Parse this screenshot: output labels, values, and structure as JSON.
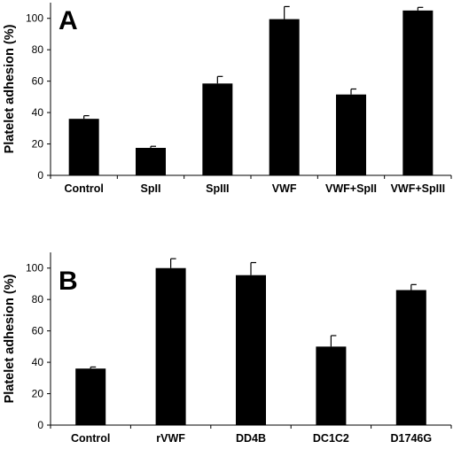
{
  "chart_data": [
    {
      "type": "bar",
      "panel_label": "A",
      "ylabel": "Platelet adhesion (%)",
      "ylim": [
        0,
        110
      ],
      "yticks": [
        "0",
        "20",
        "40",
        "60",
        "80",
        "100"
      ],
      "categories": [
        "Control",
        "SpII",
        "SpIII",
        "VWF",
        "VWF+SpII",
        "VWF+SpIII"
      ],
      "values": [
        36,
        17.5,
        58.5,
        99.5,
        51.5,
        105
      ],
      "errors": [
        2,
        1,
        4.5,
        8,
        3.5,
        2
      ]
    },
    {
      "type": "bar",
      "panel_label": "B",
      "ylabel": "Platelet adhesion (%)",
      "ylim": [
        0,
        110
      ],
      "yticks": [
        "0",
        "20",
        "40",
        "60",
        "80",
        "100"
      ],
      "categories": [
        "Control",
        "rVWF",
        "DD4B",
        "DC1C2",
        "D1746G"
      ],
      "values": [
        36,
        100,
        95.5,
        50,
        86
      ],
      "errors": [
        1,
        6,
        8,
        7,
        3.5
      ]
    }
  ],
  "colors": {
    "bar": "#000000",
    "axis": "#000000",
    "background": "#ffffff"
  }
}
